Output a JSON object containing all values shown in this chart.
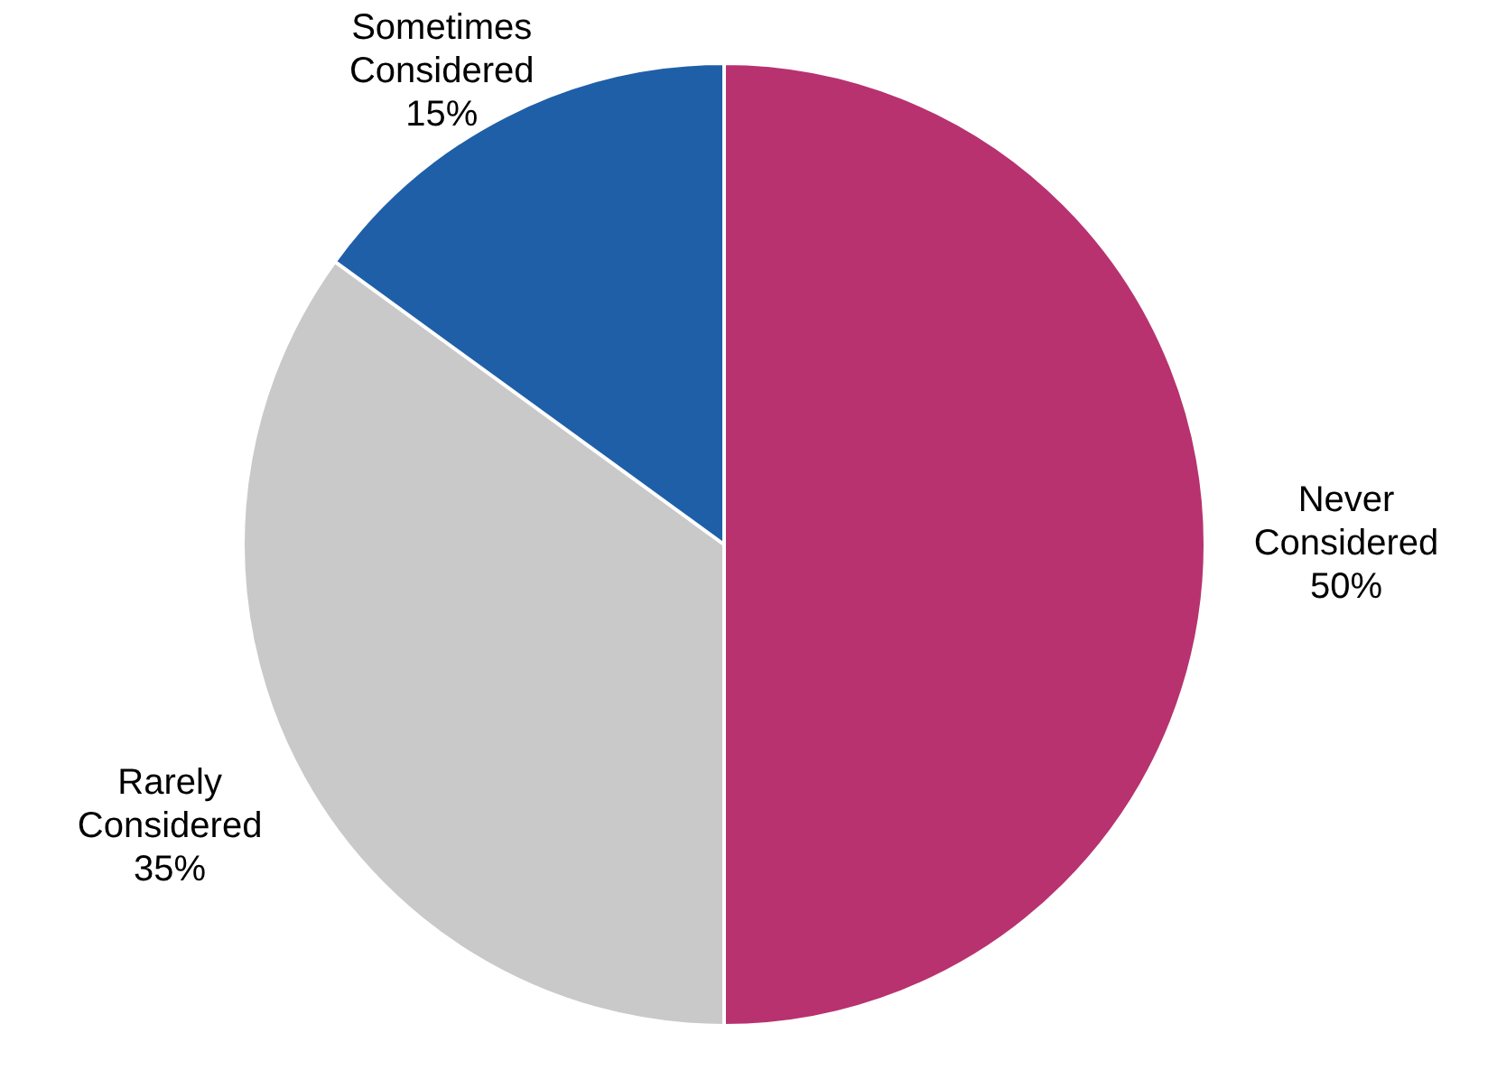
{
  "chart_data": {
    "type": "pie",
    "categories": [
      "Never Considered",
      "Rarely Considered",
      "Sometimes Considered"
    ],
    "values": [
      50,
      35,
      15
    ],
    "value_labels": [
      "50%",
      "35%",
      "15%"
    ],
    "colors": [
      "#b8326f",
      "#c9c9c9",
      "#1f5fa8"
    ],
    "legend": false
  }
}
